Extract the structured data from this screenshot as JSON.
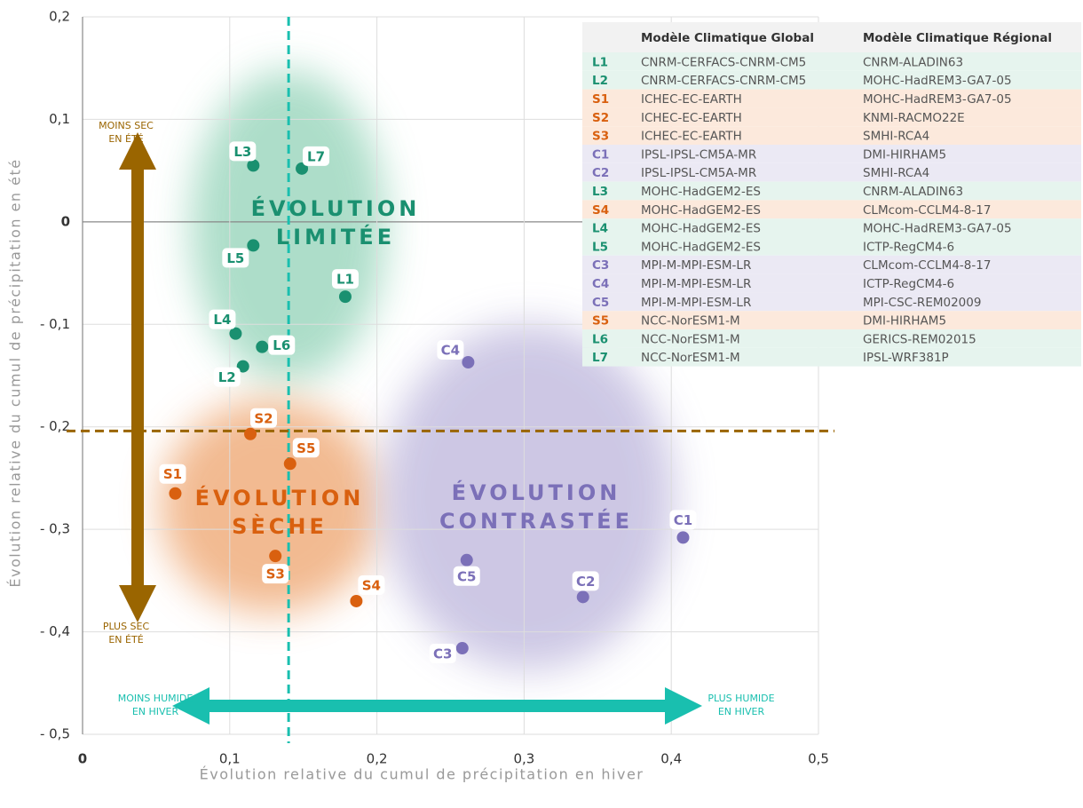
{
  "chart_data": {
    "type": "scatter",
    "x_label": "Évolution relative du cumul de précipitation en hiver",
    "y_label": "Évolution relative du cumul de précipitation en été",
    "xlim": [
      0,
      0.5
    ],
    "ylim": [
      -0.5,
      0.2
    ],
    "xticks": [
      0,
      {
        "value": 0.1,
        "label": "0,1"
      },
      {
        "value": 0.2,
        "label": "0,2"
      },
      {
        "value": 0.3,
        "label": "0,3"
      },
      {
        "value": 0.4,
        "label": "0,4"
      },
      {
        "value": 0.5,
        "label": "0,5"
      }
    ],
    "yticks": [
      {
        "value": 0.2,
        "label": "0,2"
      },
      {
        "value": 0.1,
        "label": "0,1"
      },
      0,
      {
        "value": -0.1,
        "label": "- 0,1"
      },
      {
        "value": -0.2,
        "label": "- 0,2"
      },
      {
        "value": -0.3,
        "label": "- 0,3"
      },
      {
        "value": -0.4,
        "label": "- 0,4"
      },
      {
        "value": -0.5,
        "label": "- 0,5"
      }
    ],
    "grid": true,
    "x_reference": 0.14,
    "y_reference": -0.204,
    "series": [
      {
        "color": "#1a9070",
        "labels": [
          "L1",
          "L2",
          "L3",
          "L4",
          "L5",
          "L6",
          "L7"
        ],
        "x": [
          0.1785,
          0.109,
          0.116,
          0.104,
          0.116,
          0.122,
          0.149
        ],
        "values": [
          -0.073,
          -0.141,
          0.055,
          -0.109,
          -0.023,
          -0.122,
          0.052
        ]
      },
      {
        "color": "#d9600f",
        "labels": [
          "S1",
          "S2",
          "S3",
          "S4",
          "S5"
        ],
        "x": [
          0.063,
          0.114,
          0.131,
          0.186,
          0.141
        ],
        "values": [
          -0.265,
          -0.207,
          -0.326,
          -0.37,
          -0.236
        ]
      },
      {
        "color": "#7b70b8",
        "labels": [
          "C1",
          "C2",
          "C3",
          "C4",
          "C5"
        ],
        "x": [
          0.408,
          0.34,
          0.258,
          0.262,
          0.261
        ],
        "values": [
          -0.308,
          -0.366,
          -0.416,
          -0.137,
          -0.33
        ]
      }
    ],
    "regions": [
      [
        "ÉVOLUTION",
        "LIMITÉE"
      ],
      [
        "ÉVOLUTION",
        "SÈCHE"
      ],
      [
        "ÉVOLUTION",
        "CONTRASTÉE"
      ]
    ],
    "arrow_labels": {
      "top": [
        "MOINS SEC",
        "EN ÉTÉ"
      ],
      "bottom": [
        "PLUS SEC",
        "EN ÉTÉ"
      ],
      "left": [
        "MOINS HUMIDE",
        "EN HIVER"
      ],
      "right": [
        "PLUS HUMIDE",
        "EN HIVER"
      ]
    },
    "table": {
      "header": [
        "Modèle Climatique Global",
        "Modèle Climatique Régional"
      ],
      "rows": [
        [
          "L1",
          "CNRM-CERFACS-CNRM-CM5",
          "CNRM-ALADIN63"
        ],
        [
          "L2",
          "CNRM-CERFACS-CNRM-CM5",
          "MOHC-HadREM3-GA7-05"
        ],
        [
          "S1",
          "ICHEC-EC-EARTH",
          "MOHC-HadREM3-GA7-05"
        ],
        [
          "S2",
          "ICHEC-EC-EARTH",
          "KNMI-RACMO22E"
        ],
        [
          "S3",
          "ICHEC-EC-EARTH",
          "SMHI-RCA4"
        ],
        [
          "C1",
          "IPSL-IPSL-CM5A-MR",
          "DMI-HIRHAM5"
        ],
        [
          "C2",
          "IPSL-IPSL-CM5A-MR",
          "SMHI-RCA4"
        ],
        [
          "L3",
          "MOHC-HadGEM2-ES",
          "CNRM-ALADIN63"
        ],
        [
          "S4",
          "MOHC-HadGEM2-ES",
          "CLMcom-CCLM4-8-17"
        ],
        [
          "L4",
          "MOHC-HadGEM2-ES",
          "MOHC-HadREM3-GA7-05"
        ],
        [
          "L5",
          "MOHC-HadGEM2-ES",
          "ICTP-RegCM4-6"
        ],
        [
          "C3",
          "MPI-M-MPI-ESM-LR",
          "CLMcom-CCLM4-8-17"
        ],
        [
          "C4",
          "MPI-M-MPI-ESM-LR",
          "ICTP-RegCM4-6"
        ],
        [
          "C5",
          "MPI-M-MPI-ESM-LR",
          "MPI-CSC-REM02009"
        ],
        [
          "S5",
          "NCC-NorESM1-M",
          "DMI-HIRHAM5"
        ],
        [
          "L6",
          "NCC-NorESM1-M",
          "GERICS-REM02015"
        ],
        [
          "L7",
          "NCC-NorESM1-M",
          "IPSL-WRF381P"
        ]
      ]
    }
  }
}
